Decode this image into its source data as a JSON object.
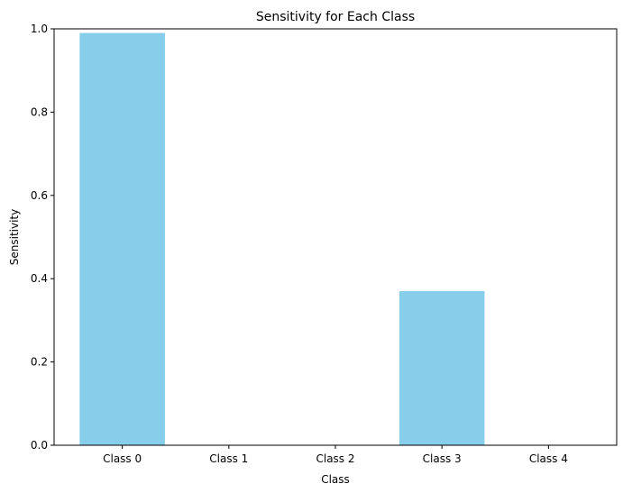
{
  "chart_data": {
    "type": "bar",
    "title": "Sensitivity for Each Class",
    "xlabel": "Class",
    "ylabel": "Sensitivity",
    "categories": [
      "Class 0",
      "Class 1",
      "Class 2",
      "Class 3",
      "Class 4"
    ],
    "values": [
      0.99,
      0.0,
      0.0,
      0.37,
      0.0
    ],
    "ylim": [
      0,
      1.0
    ],
    "yticks": [
      "0.0",
      "0.2",
      "0.4",
      "0.6",
      "0.8",
      "1.0"
    ],
    "bar_color": "#87ceeb",
    "grid": false,
    "legend": "none"
  }
}
